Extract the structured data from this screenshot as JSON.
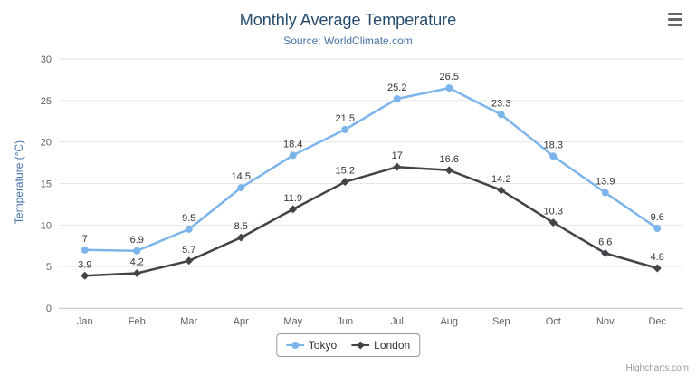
{
  "chart_data": {
    "type": "line",
    "title": "Monthly Average Temperature",
    "subtitle": "Source: WorldClimate.com",
    "categories": [
      "Jan",
      "Feb",
      "Mar",
      "Apr",
      "May",
      "Jun",
      "Jul",
      "Aug",
      "Sep",
      "Oct",
      "Nov",
      "Dec"
    ],
    "series": [
      {
        "name": "Tokyo",
        "color": "#7cb5ec",
        "marker": "circle",
        "values": [
          7,
          6.9,
          9.5,
          14.5,
          18.4,
          21.5,
          25.2,
          26.5,
          23.3,
          18.3,
          13.9,
          9.6
        ]
      },
      {
        "name": "London",
        "color": "#434348",
        "marker": "diamond",
        "values": [
          3.9,
          4.2,
          5.7,
          8.5,
          11.9,
          15.2,
          17,
          16.6,
          14.2,
          10.3,
          6.6,
          4.8
        ]
      }
    ],
    "xlabel": "",
    "ylabel": "Temperature (°C)",
    "ylim": [
      0,
      30
    ],
    "yticks": [
      0,
      5,
      10,
      15,
      20,
      25,
      30
    ],
    "grid": true,
    "legend_position": "bottom"
  },
  "menu": {
    "icon": "hamburger-menu"
  },
  "credits": {
    "label": "Highcharts.com"
  }
}
